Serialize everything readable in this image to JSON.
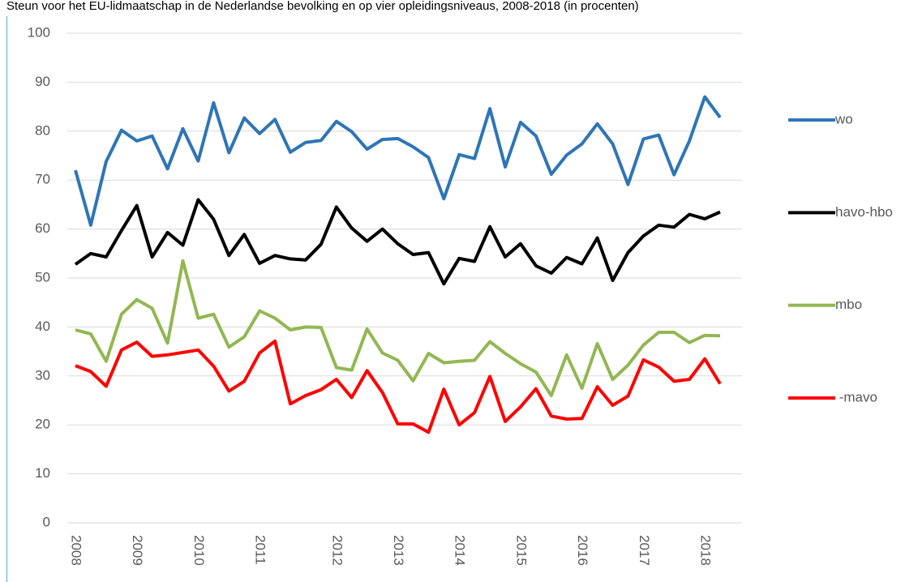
{
  "chart_data": {
    "type": "line",
    "title": "Steun voor het EU-lidmaatschap in de Nederlandse bevolking en op vier opleidingsniveaus, 2008-2018 (in procenten)",
    "categories": [
      "2008",
      null,
      null,
      null,
      "2009",
      null,
      null,
      null,
      "2010",
      null,
      null,
      null,
      "2011",
      null,
      null,
      null,
      null,
      "2012",
      null,
      null,
      null,
      "2013",
      null,
      null,
      null,
      "2014",
      null,
      null,
      null,
      "2015",
      null,
      null,
      null,
      "2016",
      null,
      null,
      null,
      "2017",
      null,
      null,
      null,
      "2018",
      null
    ],
    "series": [
      {
        "name": "wo",
        "color": "#2e75b6",
        "values": [
          72,
          60.8,
          73.8,
          80.2,
          78,
          79,
          72.3,
          80.5,
          73.9,
          85.8,
          75.6,
          82.7,
          79.5,
          82.4,
          75.7,
          77.7,
          78.1,
          82,
          79.9,
          76.3,
          78.3,
          78.5,
          76.8,
          74.6,
          66.2,
          75.2,
          74.4,
          84.6,
          72.7,
          81.8,
          79,
          71.2,
          75.1,
          77.4,
          81.5,
          77.4,
          69.1,
          78.4,
          79.2,
          71.1,
          78,
          87,
          82.8
        ]
      },
      {
        "name": "havo-hbo",
        "color": "#000000",
        "values": [
          52.8,
          55,
          54.3,
          59.7,
          64.8,
          54.3,
          59.3,
          56.7,
          66,
          62,
          54.6,
          58.9,
          53,
          54.6,
          53.9,
          53.7,
          56.9,
          64.5,
          60.2,
          57.5,
          60,
          57,
          54.8,
          55.2,
          48.8,
          54,
          53.4,
          60.5,
          54.3,
          57,
          52.5,
          51,
          54.2,
          52.9,
          58.2,
          49.5,
          55.2,
          58.6,
          60.8,
          60.4,
          63,
          62.1,
          63.5
        ]
      },
      {
        "name": "mbo",
        "color": "#92b752",
        "values": [
          39.4,
          38.6,
          33,
          42.6,
          45.6,
          43.8,
          36.7,
          53.5,
          41.8,
          42.6,
          35.9,
          38,
          43.3,
          41.8,
          39.4,
          40,
          39.9,
          31.7,
          31.2,
          39.6,
          34.7,
          33.2,
          29,
          34.6,
          32.7,
          33,
          33.2,
          37,
          34.6,
          32.5,
          30.8,
          26,
          34.3,
          27.5,
          36.6,
          29.3,
          32.2,
          36.3,
          38.9,
          38.9,
          36.8,
          38.3,
          38.2
        ]
      },
      {
        "name": " -mavo",
        "color": "#ff0000",
        "values": [
          32.1,
          30.9,
          27.9,
          35.3,
          36.9,
          34,
          34.3,
          34.8,
          35.3,
          32,
          26.9,
          28.9,
          34.7,
          37.1,
          24.3,
          26,
          27.2,
          29.3,
          25.6,
          31.1,
          26.6,
          20.2,
          20.2,
          18.5,
          27.3,
          20,
          22.5,
          29.9,
          20.7,
          23.7,
          27.4,
          21.8,
          21.2,
          21.3,
          27.8,
          24,
          25.9,
          33.3,
          31.8,
          28.9,
          29.3,
          33.5,
          28.4
        ]
      }
    ],
    "ylim": [
      0,
      100
    ],
    "yticks": [
      0,
      10,
      20,
      30,
      40,
      50,
      60,
      70,
      80,
      90,
      100
    ],
    "grid": true,
    "legend": "right"
  }
}
